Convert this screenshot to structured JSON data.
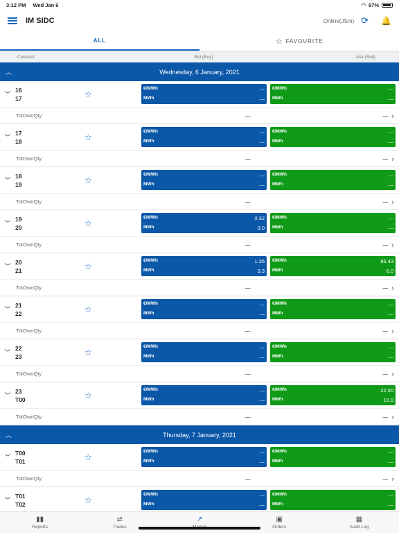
{
  "status": {
    "time": "3:12 PM",
    "date": "Wed Jan 6",
    "battery": "97%"
  },
  "header": {
    "title": "IM SIDC",
    "online": "Online(JSm)"
  },
  "tabs": [
    {
      "label": "ALL"
    },
    {
      "label": "FAVOURITE"
    }
  ],
  "columns": {
    "contract": "Contract",
    "bid": "Bid (Buy)",
    "ask": "Ask (Sell)"
  },
  "unit_price": "€/MWh",
  "unit_qty": "MWh",
  "own_qty_label": "TotOwnQty",
  "dash": "—",
  "days": [
    {
      "title": "Wednesday, 6 January, 2021",
      "rows": [
        {
          "from": "16",
          "to": "17",
          "bid_price": "—",
          "bid_qty": "—",
          "ask_price": "—",
          "ask_qty": "—",
          "bid_own": "—",
          "ask_own": "—"
        },
        {
          "from": "17",
          "to": "18",
          "bid_price": "—",
          "bid_qty": "—",
          "ask_price": "—",
          "ask_qty": "—",
          "bid_own": "—",
          "ask_own": "—"
        },
        {
          "from": "18",
          "to": "19",
          "bid_price": "—",
          "bid_qty": "—",
          "ask_price": "—",
          "ask_qty": "—",
          "bid_own": "—",
          "ask_own": "—"
        },
        {
          "from": "19",
          "to": "20",
          "bid_price": "0.32",
          "bid_qty": "3.0",
          "ask_price": "—",
          "ask_qty": "—",
          "bid_own": "—",
          "ask_own": "—"
        },
        {
          "from": "20",
          "to": "21",
          "bid_price": "1.35",
          "bid_qty": "9.3",
          "ask_price": "85.43",
          "ask_qty": "6.0",
          "bid_own": "—",
          "ask_own": "—"
        },
        {
          "from": "21",
          "to": "22",
          "bid_price": "—",
          "bid_qty": "—",
          "ask_price": "—",
          "ask_qty": "—",
          "bid_own": "—",
          "ask_own": "—"
        },
        {
          "from": "22",
          "to": "23",
          "bid_price": "—",
          "bid_qty": "—",
          "ask_price": "—",
          "ask_qty": "—",
          "bid_own": "—",
          "ask_own": "—"
        },
        {
          "from": "23",
          "to": "T00",
          "bid_price": "—",
          "bid_qty": "—",
          "ask_price": "22.00",
          "ask_qty": "10.0",
          "bid_own": "—",
          "ask_own": "—"
        }
      ]
    },
    {
      "title": "Thursday, 7 January, 2021",
      "rows": [
        {
          "from": "T00",
          "to": "T01",
          "bid_price": "—",
          "bid_qty": "—",
          "ask_price": "—",
          "ask_qty": "—",
          "bid_own": "—",
          "ask_own": "—"
        },
        {
          "from": "T01",
          "to": "T02",
          "bid_price": "—",
          "bid_qty": "—",
          "ask_price": "—",
          "ask_qty": "—",
          "bid_own": "—",
          "ask_own": "—"
        }
      ]
    }
  ],
  "nav": [
    {
      "label": "Reports",
      "icon": "bar-chart-icon"
    },
    {
      "label": "Trades",
      "icon": "swap-arrows-icon"
    },
    {
      "label": "Market",
      "icon": "trend-line-icon"
    },
    {
      "label": "Orders",
      "icon": "briefcase-icon"
    },
    {
      "label": "Audit Log",
      "icon": "calendar-icon"
    }
  ]
}
